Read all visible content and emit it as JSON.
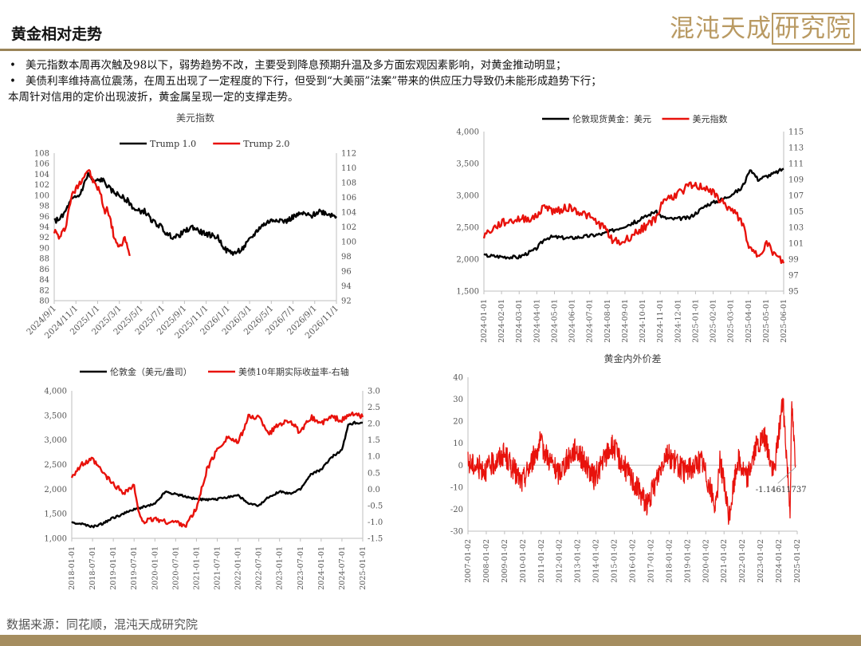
{
  "header": {
    "title": "黄金相对走势",
    "brand": "混沌天成",
    "brand_boxed": "研究院"
  },
  "bullets": [
    "美元指数本周再次触及98以下，弱势趋势不改，主要受到降息预期升温及多方面宏观因素影响，对黄金推动明显；",
    "美债利率维持高位震荡，在周五出现了一定程度的下行，但受到“大美丽”法案”带来的供应压力导致仍未能形成趋势下行；"
  ],
  "note": "本周针对信用的定价出现波折，黄金属呈现一定的支撑走势。",
  "footer": {
    "source": "数据来源：同花顺，混沌天成研究院"
  },
  "colors": {
    "black_series": "#000000",
    "red_series": "#e8120c",
    "gold_accent": "#b99a63",
    "axis": "#bfbfbf"
  },
  "chart_data": [
    {
      "id": "c1",
      "type": "line",
      "title": "美元指数",
      "legend": [
        "Trump 1.0",
        "Trump 2.0"
      ],
      "legend_position": "top",
      "x_ticks": [
        "2024/9/1",
        "2024/11/1",
        "2025/1/1",
        "2025/3/1",
        "2025/5/1",
        "2025/7/1",
        "2025/9/1",
        "2025/11/1",
        "2026/1/1",
        "2026/3/1",
        "2026/5/1",
        "2026/7/1",
        "2026/9/1",
        "2026/11/1"
      ],
      "y_left": {
        "ticks": [
          "80",
          "82",
          "84",
          "86",
          "88",
          "90",
          "92",
          "94",
          "96",
          "98",
          "100",
          "102",
          "104",
          "106",
          "108"
        ],
        "ylim": [
          80,
          108
        ]
      },
      "y_right": {
        "ticks": [
          "92",
          "94",
          "96",
          "98",
          "100",
          "102",
          "104",
          "106",
          "108",
          "110",
          "112"
        ],
        "ylim": [
          92,
          112
        ]
      },
      "series": [
        {
          "name": "Trump 1.0",
          "axis": "left",
          "color": "#000000",
          "points": [
            [
              0,
              95
            ],
            [
              3,
              96
            ],
            [
              6,
              99
            ],
            [
              9,
              100
            ],
            [
              12,
              104
            ],
            [
              14,
              102.5
            ],
            [
              17,
              103
            ],
            [
              20,
              101
            ],
            [
              23,
              100
            ],
            [
              26,
              99
            ],
            [
              29,
              97
            ],
            [
              32,
              97
            ],
            [
              35,
              95
            ],
            [
              38,
              94
            ],
            [
              40,
              92.5
            ],
            [
              43,
              92
            ],
            [
              46,
              93
            ],
            [
              49,
              94
            ],
            [
              52,
              93
            ],
            [
              55,
              92.5
            ],
            [
              58,
              92
            ],
            [
              61,
              89.5
            ],
            [
              64,
              89
            ],
            [
              67,
              90
            ],
            [
              70,
              92
            ],
            [
              73,
              94
            ],
            [
              76,
              95
            ],
            [
              79,
              95.5
            ],
            [
              82,
              95
            ],
            [
              85,
              96
            ],
            [
              88,
              96.5
            ],
            [
              91,
              96
            ],
            [
              94,
              97
            ],
            [
              97,
              96.5
            ],
            [
              100,
              96
            ]
          ]
        },
        {
          "name": "Trump 2.0",
          "axis": "right",
          "color": "#e8120c",
          "points": [
            [
              0,
              101.5
            ],
            [
              2,
              100.5
            ],
            [
              4,
              102
            ],
            [
              6,
              106
            ],
            [
              9,
              108
            ],
            [
              12,
              109.8
            ],
            [
              14,
              108
            ],
            [
              16,
              107
            ],
            [
              18,
              104
            ],
            [
              19,
              104.5
            ],
            [
              21,
              101
            ],
            [
              23,
              99
            ],
            [
              25,
              100.5
            ],
            [
              26,
              99
            ],
            [
              27,
              98.2
            ]
          ]
        }
      ]
    },
    {
      "id": "c2",
      "type": "line",
      "title": "",
      "legend": [
        "伦敦现货黄金：美元",
        "美元指数"
      ],
      "legend_position": "top",
      "x_ticks": [
        "2024-01-01",
        "2024-02-01",
        "2024-03-01",
        "2024-04-01",
        "2024-05-01",
        "2024-06-01",
        "2024-07-01",
        "2024-08-01",
        "2024-09-01",
        "2024-10-01",
        "2024-11-01",
        "2024-12-01",
        "2025-01-01",
        "2025-02-01",
        "2025-03-01",
        "2025-04-01",
        "2025-05-01",
        "2025-06-01"
      ],
      "y_left": {
        "ticks": [
          "1,500",
          "2,000",
          "2,500",
          "3,000",
          "3,500",
          "4,000"
        ],
        "ylim": [
          1500,
          4000
        ]
      },
      "y_right": {
        "ticks": [
          "95",
          "97",
          "99",
          "101",
          "103",
          "105",
          "107",
          "109",
          "111",
          "113",
          "115"
        ],
        "ylim": [
          95,
          115
        ]
      },
      "series": [
        {
          "name": "伦敦现货黄金：美元",
          "axis": "left",
          "color": "#000000",
          "points": [
            [
              0,
              2060
            ],
            [
              1,
              2040
            ],
            [
              2,
              2030
            ],
            [
              3,
              2150
            ],
            [
              3.6,
              2330
            ],
            [
              4,
              2350
            ],
            [
              5,
              2330
            ],
            [
              6,
              2360
            ],
            [
              7,
              2400
            ],
            [
              7.5,
              2450
            ],
            [
              8,
              2500
            ],
            [
              9,
              2600
            ],
            [
              10,
              2750
            ],
            [
              10.5,
              2650
            ],
            [
              11,
              2630
            ],
            [
              12,
              2650
            ],
            [
              13,
              2850
            ],
            [
              14,
              2950
            ],
            [
              15,
              3100
            ],
            [
              15.6,
              3400
            ],
            [
              16,
              3250
            ],
            [
              16.5,
              3300
            ],
            [
              17,
              3350
            ],
            [
              17.5,
              3420
            ]
          ]
        },
        {
          "name": "美元指数",
          "axis": "right",
          "color": "#e8120c",
          "points": [
            [
              0,
              102
            ],
            [
              1,
              103.5
            ],
            [
              2,
              104
            ],
            [
              3,
              104.2
            ],
            [
              3.6,
              105.8
            ],
            [
              4,
              105
            ],
            [
              5,
              105.5
            ],
            [
              6,
              104.5
            ],
            [
              7,
              103
            ],
            [
              7.5,
              101.5
            ],
            [
              8,
              101
            ],
            [
              9,
              102.5
            ],
            [
              10,
              104
            ],
            [
              10.5,
              106.5
            ],
            [
              11,
              106.8
            ],
            [
              12,
              108.2
            ],
            [
              13,
              108
            ],
            [
              14,
              106
            ],
            [
              15,
              104
            ],
            [
              15.6,
              100
            ],
            [
              16,
              99.5
            ],
            [
              16.5,
              101
            ],
            [
              17,
              99.5
            ],
            [
              17.5,
              98.5
            ]
          ]
        }
      ]
    },
    {
      "id": "c3",
      "type": "line",
      "title": "",
      "legend": [
        "伦敦金（美元/盎司）",
        "美债10年期实际收益率-右轴"
      ],
      "legend_position": "top",
      "x_ticks": [
        "2018-01-01",
        "2018-07-01",
        "2019-01-01",
        "2019-07-01",
        "2020-01-01",
        "2020-07-01",
        "2021-01-01",
        "2021-07-01",
        "2022-01-01",
        "2022-07-01",
        "2023-01-01",
        "2023-07-01",
        "2024-01-01",
        "2024-07-01",
        "2025-01-01"
      ],
      "y_left": {
        "ticks": [
          "1,000",
          "1,500",
          "2,000",
          "2,500",
          "3,000",
          "3,500",
          "4,000"
        ],
        "ylim": [
          1000,
          4000
        ]
      },
      "y_right": {
        "ticks": [
          "-1.5",
          "-1.0",
          "-0.5",
          "0.0",
          "0.5",
          "1.0",
          "1.5",
          "2.0",
          "2.5",
          "3.0"
        ],
        "ylim": [
          -1.5,
          3.0
        ]
      },
      "series": [
        {
          "name": "伦敦金（美元/盎司）",
          "axis": "left",
          "color": "#000000",
          "points": [
            [
              0,
              1320
            ],
            [
              0.5,
              1290
            ],
            [
              1,
              1230
            ],
            [
              1.5,
              1300
            ],
            [
              2,
              1420
            ],
            [
              2.5,
              1500
            ],
            [
              3,
              1590
            ],
            [
              4,
              1700
            ],
            [
              4.5,
              1950
            ],
            [
              5,
              1900
            ],
            [
              5.5,
              1850
            ],
            [
              6,
              1800
            ],
            [
              6.5,
              1780
            ],
            [
              7,
              1800
            ],
            [
              8,
              1880
            ],
            [
              8.5,
              1700
            ],
            [
              9,
              1660
            ],
            [
              9.5,
              1850
            ],
            [
              10,
              1950
            ],
            [
              10.5,
              1900
            ],
            [
              11,
              2000
            ],
            [
              11.5,
              2300
            ],
            [
              12,
              2400
            ],
            [
              12.5,
              2650
            ],
            [
              13,
              2800
            ],
            [
              13.3,
              3300
            ],
            [
              13.6,
              3350
            ],
            [
              14,
              3350
            ]
          ]
        },
        {
          "name": "美债10年期实际收益率-右轴",
          "axis": "right",
          "color": "#e8120c",
          "points": [
            [
              0,
              0.4
            ],
            [
              0.5,
              0.75
            ],
            [
              1,
              0.9
            ],
            [
              1.5,
              0.5
            ],
            [
              2,
              0.15
            ],
            [
              2.5,
              -0.1
            ],
            [
              3,
              0.1
            ],
            [
              3.2,
              -0.7
            ],
            [
              3.5,
              -1.0
            ],
            [
              4,
              -0.9
            ],
            [
              4.5,
              -1.0
            ],
            [
              5,
              -1.0
            ],
            [
              5.5,
              -1.1
            ],
            [
              6,
              -0.6
            ],
            [
              6.5,
              0.6
            ],
            [
              7,
              1.2
            ],
            [
              7.5,
              1.6
            ],
            [
              8,
              1.4
            ],
            [
              8.5,
              2.2
            ],
            [
              9,
              2.2
            ],
            [
              9.5,
              1.7
            ],
            [
              10,
              2.0
            ],
            [
              10.5,
              2.1
            ],
            [
              11,
              1.7
            ],
            [
              11.5,
              2.2
            ],
            [
              12,
              2.0
            ],
            [
              12.5,
              2.2
            ],
            [
              13,
              2.1
            ],
            [
              13.5,
              2.3
            ],
            [
              14,
              2.2
            ]
          ]
        }
      ]
    },
    {
      "id": "c4",
      "type": "line",
      "title": "黄金内外价差",
      "legend": [],
      "x_ticks": [
        "2007-01-02",
        "2008-01-02",
        "2009-01-02",
        "2010-01-02",
        "2011-01-02",
        "2012-01-02",
        "2013-01-02",
        "2014-01-02",
        "2015-01-02",
        "2016-01-02",
        "2017-01-02",
        "2018-01-02",
        "2019-01-02",
        "2020-01-02",
        "2021-01-02",
        "2022-01-02",
        "2023-01-02",
        "2024-01-02",
        "2025-01-02"
      ],
      "y_left": {
        "ticks": [
          "-30",
          "-20",
          "-10",
          "0",
          "10",
          "20",
          "30",
          "40"
        ],
        "ylim": [
          -30,
          40
        ]
      },
      "annotation": "-1.14611737",
      "series": [
        {
          "name": "",
          "axis": "left",
          "color": "#e8120c",
          "points": [
            [
              0,
              1
            ],
            [
              1,
              -2
            ],
            [
              2,
              5
            ],
            [
              3,
              -8
            ],
            [
              4,
              10
            ],
            [
              5,
              -4
            ],
            [
              6,
              8
            ],
            [
              7,
              -6
            ],
            [
              8,
              9
            ],
            [
              9,
              -5
            ],
            [
              10,
              -18
            ],
            [
              11,
              6
            ],
            [
              12,
              -3
            ],
            [
              13,
              2
            ],
            [
              13.8,
              -20
            ],
            [
              14,
              4
            ],
            [
              14.5,
              -24
            ],
            [
              15,
              3
            ],
            [
              15.5,
              -6
            ],
            [
              16,
              8
            ],
            [
              16.5,
              12
            ],
            [
              17,
              -4
            ],
            [
              17.5,
              30
            ],
            [
              17.9,
              -19
            ],
            [
              18,
              28
            ],
            [
              18.2,
              -1
            ]
          ]
        }
      ]
    }
  ]
}
